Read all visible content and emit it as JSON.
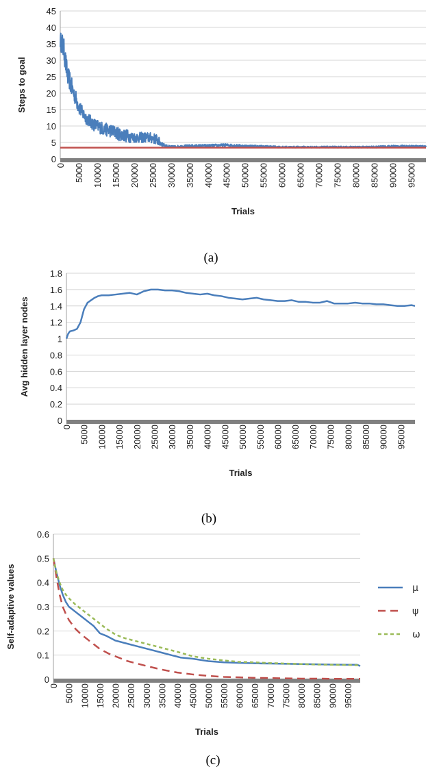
{
  "chart_data": [
    {
      "type": "line",
      "panel": "a",
      "caption": "(a)",
      "xlabel": "Trials",
      "ylabel": "Steps to goal",
      "ylim": [
        0,
        45
      ],
      "yticks": [
        "0",
        "5",
        "10",
        "15",
        "20",
        "25",
        "30",
        "35",
        "40",
        "45"
      ],
      "xlim": [
        0,
        99000
      ],
      "xticks": [
        "0",
        "5000",
        "10000",
        "15000",
        "20000",
        "25000",
        "30000",
        "35000",
        "40000",
        "45000",
        "50000",
        "55000",
        "60000",
        "65000",
        "70000",
        "75000",
        "80000",
        "85000",
        "90000",
        "95000"
      ],
      "grid": true,
      "series": [
        {
          "color": "#4a7ebb",
          "x": [
            0,
            500,
            1000,
            1500,
            2000,
            2500,
            3000,
            4000,
            5000,
            6000,
            7000,
            8000,
            9000,
            10000,
            12000,
            14000,
            16000,
            18000,
            20000,
            22000,
            24000,
            26000,
            27000,
            28000,
            29000,
            30000,
            35000,
            40000,
            45000,
            50000,
            55000,
            60000,
            65000,
            70000,
            75000,
            80000,
            85000,
            90000,
            95000,
            99000
          ],
          "y": [
            36,
            35,
            33,
            29,
            25,
            24,
            22,
            19,
            16,
            14,
            12.5,
            11.5,
            10.5,
            10,
            9,
            8.5,
            7.5,
            7,
            6.5,
            6.5,
            6.5,
            6,
            5,
            4.2,
            3.9,
            3.7,
            3.9,
            4,
            4.2,
            3.9,
            3.8,
            3.6,
            3.6,
            3.6,
            3.6,
            3.6,
            3.6,
            3.8,
            3.8,
            3.8
          ],
          "noise": [
            2.5,
            3.5,
            3.5,
            3.5,
            3,
            3,
            3,
            2.5,
            2.5,
            2,
            2,
            2,
            2,
            2,
            2,
            2,
            2,
            2,
            1.6,
            1.6,
            1.6,
            1.6,
            1.2,
            0.5,
            0.3,
            0.3,
            0.4,
            0.4,
            0.4,
            0.35,
            0.3,
            0.25,
            0.25,
            0.25,
            0.25,
            0.25,
            0.3,
            0.35,
            0.35,
            0.35
          ]
        },
        {
          "color": "#c0504d",
          "x": [
            0,
            99000
          ],
          "y": [
            3.4,
            3.4
          ]
        }
      ]
    },
    {
      "type": "line",
      "panel": "b",
      "caption": "(b)",
      "xlabel": "Trials",
      "ylabel": "Avg hidden layer nodes",
      "ylim": [
        0,
        1.8
      ],
      "yticks": [
        "0",
        "0.2",
        "0.4",
        "0.6",
        "0.8",
        "1",
        "1.2",
        "1.4",
        "1.6",
        "1.8"
      ],
      "xlim": [
        0,
        99000
      ],
      "xticks": [
        "0",
        "5000",
        "10000",
        "15000",
        "20000",
        "25000",
        "30000",
        "35000",
        "40000",
        "45000",
        "50000",
        "55000",
        "60000",
        "65000",
        "70000",
        "75000",
        "80000",
        "85000",
        "90000",
        "95000"
      ],
      "grid": true,
      "series": [
        {
          "color": "#4a7ebb",
          "x": [
            0,
            500,
            1000,
            2000,
            3000,
            4000,
            5000,
            6000,
            7000,
            8000,
            9000,
            10000,
            12000,
            14000,
            16000,
            18000,
            20000,
            22000,
            24000,
            26000,
            28000,
            30000,
            32000,
            34000,
            36000,
            38000,
            40000,
            42000,
            44000,
            46000,
            48000,
            50000,
            52000,
            54000,
            56000,
            58000,
            60000,
            62000,
            64000,
            66000,
            68000,
            70000,
            72000,
            74000,
            76000,
            78000,
            80000,
            82000,
            84000,
            86000,
            88000,
            90000,
            92000,
            94000,
            96000,
            98000,
            99000
          ],
          "y": [
            1.0,
            1.06,
            1.09,
            1.1,
            1.12,
            1.2,
            1.36,
            1.44,
            1.47,
            1.5,
            1.52,
            1.53,
            1.53,
            1.54,
            1.55,
            1.56,
            1.54,
            1.58,
            1.6,
            1.6,
            1.59,
            1.59,
            1.58,
            1.56,
            1.55,
            1.54,
            1.55,
            1.53,
            1.52,
            1.5,
            1.49,
            1.48,
            1.49,
            1.5,
            1.48,
            1.47,
            1.46,
            1.46,
            1.47,
            1.45,
            1.45,
            1.44,
            1.44,
            1.46,
            1.43,
            1.43,
            1.43,
            1.44,
            1.43,
            1.43,
            1.42,
            1.42,
            1.41,
            1.4,
            1.4,
            1.41,
            1.4
          ]
        }
      ]
    },
    {
      "type": "line",
      "panel": "c",
      "caption": "(c)",
      "xlabel": "Trials",
      "ylabel": "Self-adaptive values",
      "ylim": [
        0,
        0.6
      ],
      "yticks": [
        "0",
        "0.1",
        "0.2",
        "0.3",
        "0.4",
        "0.5",
        "0.6"
      ],
      "xlim": [
        0,
        99000
      ],
      "xticks": [
        "0",
        "5000",
        "10000",
        "15000",
        "20000",
        "25000",
        "30000",
        "35000",
        "40000",
        "45000",
        "50000",
        "55000",
        "60000",
        "65000",
        "70000",
        "75000",
        "80000",
        "85000",
        "90000",
        "95000"
      ],
      "grid": true,
      "legend": "right",
      "series": [
        {
          "name": "μ",
          "color": "#4a7ebb",
          "dash": "",
          "x": [
            0,
            1000,
            2000,
            3000,
            4000,
            5000,
            7000,
            9000,
            11000,
            13000,
            15000,
            17000,
            20000,
            23000,
            26000,
            29000,
            32000,
            35000,
            38000,
            41000,
            45000,
            50000,
            55000,
            60000,
            65000,
            70000,
            75000,
            80000,
            85000,
            90000,
            95000,
            98000,
            99000
          ],
          "y": [
            0.5,
            0.44,
            0.39,
            0.35,
            0.32,
            0.3,
            0.28,
            0.26,
            0.24,
            0.22,
            0.19,
            0.18,
            0.16,
            0.15,
            0.14,
            0.13,
            0.12,
            0.11,
            0.1,
            0.09,
            0.085,
            0.075,
            0.07,
            0.068,
            0.066,
            0.065,
            0.064,
            0.063,
            0.062,
            0.061,
            0.06,
            0.06,
            0.055
          ]
        },
        {
          "name": "ψ",
          "color": "#c0504d",
          "dash": "11,7",
          "x": [
            0,
            1000,
            2000,
            3000,
            4000,
            5000,
            7000,
            9000,
            11000,
            13000,
            15000,
            18000,
            21000,
            24000,
            27000,
            30000,
            35000,
            40000,
            45000,
            50000,
            55000,
            60000,
            65000,
            70000,
            75000,
            80000,
            85000,
            90000,
            95000,
            99000
          ],
          "y": [
            0.5,
            0.42,
            0.35,
            0.3,
            0.27,
            0.245,
            0.21,
            0.185,
            0.165,
            0.145,
            0.125,
            0.105,
            0.09,
            0.075,
            0.065,
            0.055,
            0.04,
            0.028,
            0.02,
            0.014,
            0.01,
            0.008,
            0.006,
            0.005,
            0.004,
            0.003,
            0.003,
            0.002,
            0.002,
            0.002
          ]
        },
        {
          "name": "ω",
          "color": "#9bbb59",
          "dash": "5,4",
          "x": [
            0,
            1000,
            2000,
            3000,
            4000,
            5000,
            7000,
            9000,
            11000,
            13000,
            15000,
            17000,
            20000,
            23000,
            26000,
            29000,
            32000,
            35000,
            38000,
            41000,
            45000,
            50000,
            55000,
            60000,
            65000,
            70000,
            75000,
            80000,
            85000,
            90000,
            95000,
            99000
          ],
          "y": [
            0.5,
            0.44,
            0.4,
            0.37,
            0.35,
            0.335,
            0.31,
            0.29,
            0.27,
            0.25,
            0.23,
            0.21,
            0.185,
            0.17,
            0.16,
            0.15,
            0.14,
            0.13,
            0.12,
            0.11,
            0.095,
            0.085,
            0.078,
            0.072,
            0.07,
            0.067,
            0.065,
            0.063,
            0.061,
            0.06,
            0.059,
            0.058
          ]
        }
      ]
    }
  ]
}
